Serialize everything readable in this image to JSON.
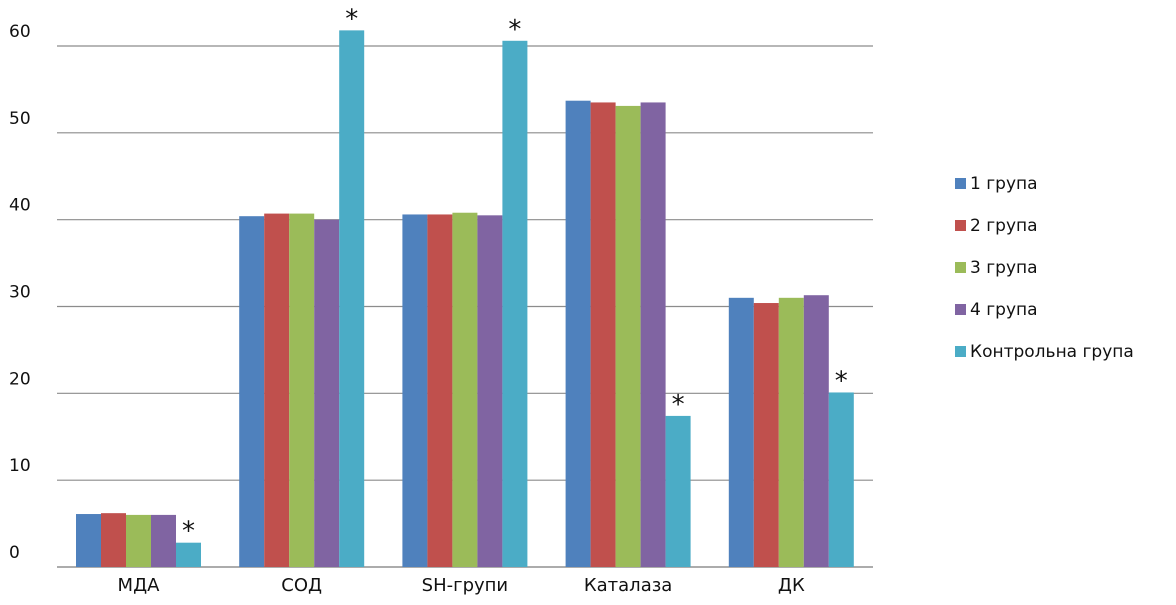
{
  "chart_data": {
    "type": "bar",
    "categories": [
      "МДА",
      "СОД",
      "SH-групи",
      "Каталаза",
      "ДК"
    ],
    "series": [
      {
        "name": "1 група",
        "color": "#4F81BD",
        "values": [
          6.1,
          40.4,
          40.6,
          53.7,
          31.0
        ]
      },
      {
        "name": "2 група",
        "color": "#C0504D",
        "values": [
          6.2,
          40.7,
          40.6,
          53.5,
          30.4
        ]
      },
      {
        "name": "3 група",
        "color": "#9BBB59",
        "values": [
          6.0,
          40.7,
          40.8,
          53.1,
          31.0
        ]
      },
      {
        "name": "4 група",
        "color": "#8064A2",
        "values": [
          6.0,
          40.0,
          40.5,
          53.5,
          31.3
        ]
      },
      {
        "name": "Контрольна група",
        "color": "#4BACC6",
        "values": [
          2.8,
          61.8,
          60.6,
          17.4,
          20.1
        ]
      }
    ],
    "significance_marker": "*",
    "significant": [
      {
        "series": 4,
        "category": 0
      },
      {
        "series": 4,
        "category": 1
      },
      {
        "series": 4,
        "category": 2
      },
      {
        "series": 4,
        "category": 3
      },
      {
        "series": 4,
        "category": 4
      }
    ],
    "yticks": [
      0,
      10,
      20,
      30,
      40,
      50,
      60
    ],
    "ylim": [
      0,
      60
    ],
    "grid": true,
    "legend_position": "right",
    "xlabel": "",
    "ylabel": "",
    "title": ""
  }
}
